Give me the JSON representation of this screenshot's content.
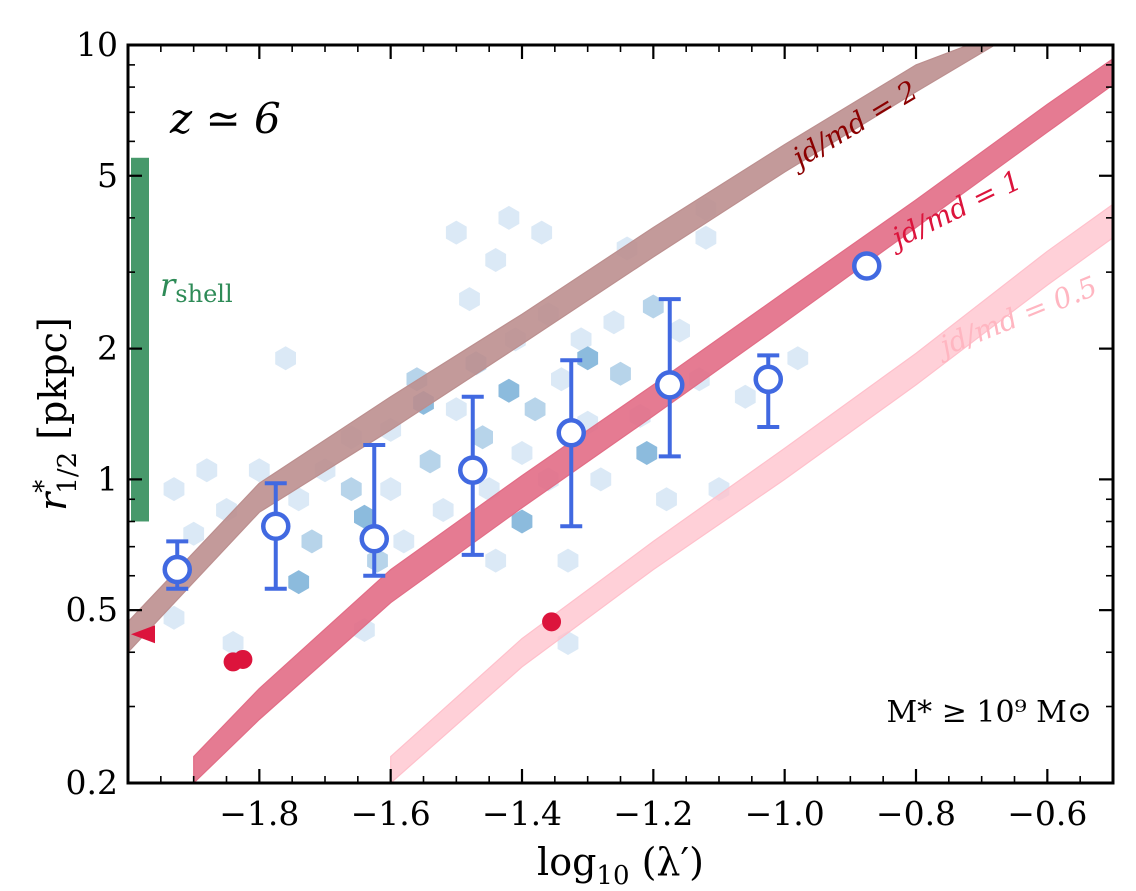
{
  "chart_data": {
    "type": "scatter",
    "title": "",
    "xlabel": "log10 (λ′)",
    "ylabel": "r*1/2 [pkpc]",
    "xscale": "linear",
    "yscale": "log",
    "xlim": [
      -2.0,
      -0.5
    ],
    "ylim": [
      0.2,
      10
    ],
    "x_ticks": [
      -1.8,
      -1.6,
      -1.4,
      -1.2,
      -1.0,
      -0.8,
      -0.6
    ],
    "x_tick_labels": [
      "−1.8",
      "−1.6",
      "−1.4",
      "−1.2",
      "−1.0",
      "−0.8",
      "−0.6"
    ],
    "y_ticks": [
      0.2,
      0.5,
      1,
      2,
      5,
      10
    ],
    "y_tick_labels": [
      "0.2",
      "0.5",
      "1",
      "2",
      "5",
      "10"
    ],
    "annotations": {
      "redshift": "z ≃ 6",
      "mass_cut": "M* ≥ 10⁹ M⊙",
      "shell_label": "rshell",
      "band_labels": [
        "jd/md = 2",
        "jd/md = 1",
        "jd/md = 0.5"
      ]
    },
    "colors": {
      "median_points": "#4169e1",
      "band_2": "#bc8f8f",
      "band_1": "#e26d86",
      "band_05": "#ffc0cb",
      "shell": "#2e8b57",
      "observed": "#dc143c",
      "hexbin": "#9ec7e6"
    },
    "shell_range": [
      0.8,
      5.5
    ],
    "model_bands": [
      {
        "name": "jd/md=2",
        "color": "#bc8f8f",
        "label_color": "#8b0000",
        "lower": [
          [
            -2.0,
            0.4
          ],
          [
            -1.8,
            0.84
          ],
          [
            -1.6,
            1.3
          ],
          [
            -1.4,
            2.05
          ],
          [
            -1.2,
            3.25
          ],
          [
            -1.0,
            5.1
          ],
          [
            -0.8,
            7.8
          ],
          [
            -0.68,
            10
          ]
        ],
        "upper": [
          [
            -2.0,
            0.47
          ],
          [
            -1.8,
            0.98
          ],
          [
            -1.6,
            1.55
          ],
          [
            -1.4,
            2.4
          ],
          [
            -1.2,
            3.8
          ],
          [
            -1.0,
            5.9
          ],
          [
            -0.8,
            9.0
          ],
          [
            -0.72,
            10
          ]
        ]
      },
      {
        "name": "jd/md=1",
        "color": "#e26d86",
        "label_color": "#dc143c",
        "lower": [
          [
            -1.9,
            0.2
          ],
          [
            -1.8,
            0.28
          ],
          [
            -1.6,
            0.52
          ],
          [
            -1.4,
            0.86
          ],
          [
            -1.2,
            1.4
          ],
          [
            -1.0,
            2.3
          ],
          [
            -0.8,
            3.8
          ],
          [
            -0.6,
            6.3
          ],
          [
            -0.5,
            8.1
          ]
        ],
        "upper": [
          [
            -1.9,
            0.23
          ],
          [
            -1.8,
            0.33
          ],
          [
            -1.6,
            0.62
          ],
          [
            -1.4,
            1.02
          ],
          [
            -1.2,
            1.65
          ],
          [
            -1.0,
            2.7
          ],
          [
            -0.8,
            4.4
          ],
          [
            -0.6,
            7.3
          ],
          [
            -0.5,
            9.3
          ]
        ]
      },
      {
        "name": "jd/md=0.5",
        "color": "#ffc0cb",
        "label_color": "#ffb6c1",
        "lower": [
          [
            -1.6,
            0.2
          ],
          [
            -1.4,
            0.37
          ],
          [
            -1.2,
            0.62
          ],
          [
            -1.0,
            1.0
          ],
          [
            -0.8,
            1.65
          ],
          [
            -0.6,
            2.8
          ],
          [
            -0.5,
            3.6
          ]
        ],
        "upper": [
          [
            -1.6,
            0.23
          ],
          [
            -1.4,
            0.43
          ],
          [
            -1.2,
            0.72
          ],
          [
            -1.0,
            1.18
          ],
          [
            -0.8,
            1.95
          ],
          [
            -0.6,
            3.35
          ],
          [
            -0.5,
            4.3
          ]
        ]
      }
    ],
    "median_points": [
      {
        "x": -1.925,
        "y": 0.62,
        "ylo": 0.56,
        "yhi": 0.72
      },
      {
        "x": -1.775,
        "y": 0.78,
        "ylo": 0.56,
        "yhi": 0.98
      },
      {
        "x": -1.625,
        "y": 0.73,
        "ylo": 0.6,
        "yhi": 1.2
      },
      {
        "x": -1.475,
        "y": 1.05,
        "ylo": 0.67,
        "yhi": 1.55
      },
      {
        "x": -1.325,
        "y": 1.28,
        "ylo": 0.78,
        "yhi": 1.88
      },
      {
        "x": -1.175,
        "y": 1.65,
        "ylo": 1.13,
        "yhi": 2.6
      },
      {
        "x": -1.025,
        "y": 1.7,
        "ylo": 1.32,
        "yhi": 1.93
      },
      {
        "x": -0.875,
        "y": 3.1,
        "ylo": null,
        "yhi": null
      }
    ],
    "observed_points": [
      {
        "x": -1.84,
        "y": 0.38
      },
      {
        "x": -1.825,
        "y": 0.385
      },
      {
        "x": -1.355,
        "y": 0.47
      }
    ],
    "upper_limit_point": {
      "x": -1.98,
      "y": 0.44
    },
    "hexbin": [
      {
        "x": -1.93,
        "y": 0.48,
        "c": 1
      },
      {
        "x": -1.9,
        "y": 0.75,
        "c": 1
      },
      {
        "x": -1.93,
        "y": 0.95,
        "c": 1
      },
      {
        "x": -1.88,
        "y": 1.05,
        "c": 1
      },
      {
        "x": -1.85,
        "y": 0.85,
        "c": 1
      },
      {
        "x": -1.84,
        "y": 0.42,
        "c": 1
      },
      {
        "x": -1.8,
        "y": 1.05,
        "c": 1
      },
      {
        "x": -1.76,
        "y": 1.9,
        "c": 1
      },
      {
        "x": -1.74,
        "y": 0.9,
        "c": 1
      },
      {
        "x": -1.72,
        "y": 0.72,
        "c": 2
      },
      {
        "x": -1.74,
        "y": 0.58,
        "c": 3
      },
      {
        "x": -1.7,
        "y": 1.05,
        "c": 1
      },
      {
        "x": -1.66,
        "y": 0.95,
        "c": 2
      },
      {
        "x": -1.66,
        "y": 1.25,
        "c": 1
      },
      {
        "x": -1.64,
        "y": 0.82,
        "c": 3
      },
      {
        "x": -1.62,
        "y": 0.65,
        "c": 2
      },
      {
        "x": -1.6,
        "y": 0.95,
        "c": 1
      },
      {
        "x": -1.6,
        "y": 1.3,
        "c": 1
      },
      {
        "x": -1.64,
        "y": 0.45,
        "c": 1
      },
      {
        "x": -1.58,
        "y": 0.72,
        "c": 1
      },
      {
        "x": -1.56,
        "y": 1.7,
        "c": 2
      },
      {
        "x": -1.55,
        "y": 1.5,
        "c": 3
      },
      {
        "x": -1.54,
        "y": 1.1,
        "c": 2
      },
      {
        "x": -1.52,
        "y": 0.85,
        "c": 1
      },
      {
        "x": -1.5,
        "y": 3.7,
        "c": 1
      },
      {
        "x": -1.5,
        "y": 1.45,
        "c": 1
      },
      {
        "x": -1.48,
        "y": 2.6,
        "c": 1
      },
      {
        "x": -1.47,
        "y": 1.85,
        "c": 2
      },
      {
        "x": -1.46,
        "y": 1.25,
        "c": 2
      },
      {
        "x": -1.45,
        "y": 0.95,
        "c": 1
      },
      {
        "x": -1.44,
        "y": 0.65,
        "c": 1
      },
      {
        "x": -1.44,
        "y": 3.2,
        "c": 1
      },
      {
        "x": -1.42,
        "y": 1.6,
        "c": 3
      },
      {
        "x": -1.42,
        "y": 4.0,
        "c": 1
      },
      {
        "x": -1.41,
        "y": 2.1,
        "c": 1
      },
      {
        "x": -1.4,
        "y": 0.8,
        "c": 3
      },
      {
        "x": -1.4,
        "y": 1.15,
        "c": 1
      },
      {
        "x": -1.38,
        "y": 1.45,
        "c": 2
      },
      {
        "x": -1.37,
        "y": 3.7,
        "c": 1
      },
      {
        "x": -1.36,
        "y": 2.4,
        "c": 1
      },
      {
        "x": -1.36,
        "y": 1.0,
        "c": 1
      },
      {
        "x": -1.34,
        "y": 1.7,
        "c": 1
      },
      {
        "x": -1.33,
        "y": 0.65,
        "c": 1
      },
      {
        "x": -1.33,
        "y": 0.42,
        "c": 1
      },
      {
        "x": -1.31,
        "y": 2.1,
        "c": 1
      },
      {
        "x": -1.3,
        "y": 1.9,
        "c": 3
      },
      {
        "x": -1.3,
        "y": 1.35,
        "c": 1
      },
      {
        "x": -1.28,
        "y": 1.0,
        "c": 1
      },
      {
        "x": -1.26,
        "y": 2.3,
        "c": 1
      },
      {
        "x": -1.25,
        "y": 1.75,
        "c": 2
      },
      {
        "x": -1.24,
        "y": 3.4,
        "c": 1
      },
      {
        "x": -1.22,
        "y": 1.4,
        "c": 1
      },
      {
        "x": -1.21,
        "y": 1.15,
        "c": 3
      },
      {
        "x": -1.2,
        "y": 2.5,
        "c": 2
      },
      {
        "x": -1.18,
        "y": 0.9,
        "c": 1
      },
      {
        "x": -1.16,
        "y": 2.2,
        "c": 1
      },
      {
        "x": -1.13,
        "y": 1.7,
        "c": 1
      },
      {
        "x": -1.12,
        "y": 4.2,
        "c": 1
      },
      {
        "x": -1.12,
        "y": 3.6,
        "c": 1
      },
      {
        "x": -1.1,
        "y": 0.95,
        "c": 1
      },
      {
        "x": -1.06,
        "y": 1.55,
        "c": 1
      },
      {
        "x": -0.98,
        "y": 1.9,
        "c": 1
      }
    ]
  }
}
